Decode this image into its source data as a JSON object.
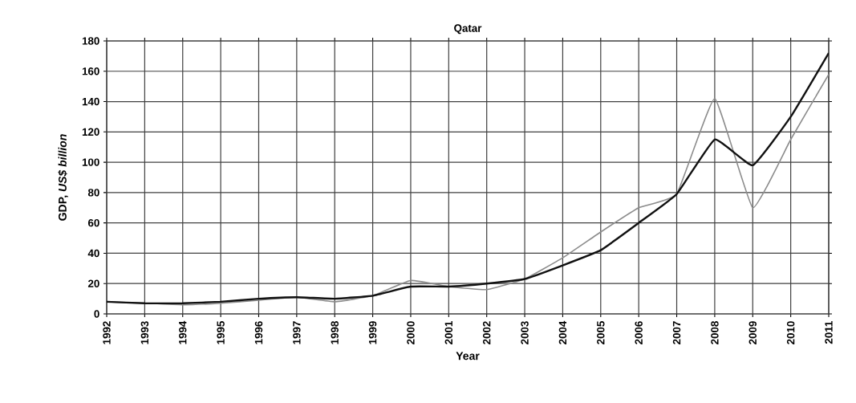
{
  "chart_data": {
    "type": "line",
    "title": "Qatar",
    "xlabel": "Year",
    "ylabel": "GDP, *US$ billion*",
    "x": [
      1992,
      1993,
      1994,
      1995,
      1996,
      1997,
      1998,
      1999,
      2000,
      2001,
      2002,
      2003,
      2004,
      2005,
      2006,
      2007,
      2008,
      2009,
      2010,
      2011
    ],
    "series": [
      {
        "color": "#8c8c8c",
        "values": [
          8,
          7,
          6,
          7,
          9,
          11,
          8,
          12,
          22,
          18,
          16,
          23,
          37,
          54,
          70,
          79,
          142,
          70,
          115,
          158
        ]
      },
      {
        "color": "#111111",
        "values": [
          8,
          7,
          7,
          8,
          10,
          11,
          10,
          12,
          18,
          18,
          20,
          23,
          32,
          42,
          60,
          79,
          115,
          98,
          130,
          172
        ]
      }
    ],
    "xlim": [
      1992,
      2011
    ],
    "ylim": [
      0,
      180
    ],
    "xticks": [
      1992,
      1993,
      1994,
      1995,
      1996,
      1997,
      1998,
      1999,
      2000,
      2001,
      2002,
      2003,
      2004,
      2005,
      2006,
      2007,
      2008,
      2009,
      2010,
      2011
    ],
    "yticks": [
      0,
      20,
      40,
      60,
      80,
      100,
      120,
      140,
      160,
      180
    ],
    "grid": true
  }
}
